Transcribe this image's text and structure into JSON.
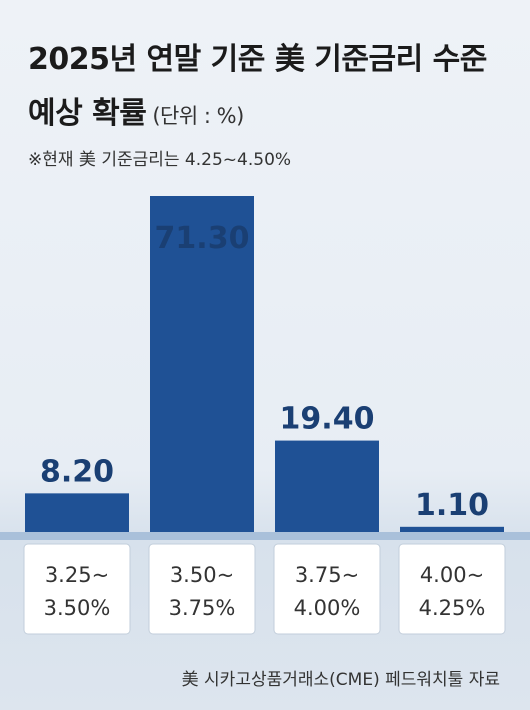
{
  "title_line1": "2025년 연말 기준 美 기준금리 수준",
  "title_line2": "예상 확률",
  "unit": "(단위 : %)",
  "note": "※현재 美 기준금리는 4.25~4.50%",
  "source": "美 시카고상품거래소(CME) 페드워치툴 자료",
  "colors": {
    "bar": "#1f5195",
    "value_text": "#1a3f73",
    "baseline": "#9bb6d3"
  },
  "chart_data": {
    "type": "bar",
    "title": "2025년 연말 기준 美 기준금리 수준 예상 확률",
    "categories": [
      "3.25~3.50%",
      "3.50~3.75%",
      "3.75~4.00%",
      "4.00~4.25%"
    ],
    "category_lines": [
      [
        "3.25~",
        "3.50%"
      ],
      [
        "3.50~",
        "3.75%"
      ],
      [
        "3.75~",
        "4.00%"
      ],
      [
        "4.00~",
        "4.25%"
      ]
    ],
    "values": [
      8.2,
      71.3,
      19.4,
      1.1
    ],
    "value_labels": [
      "8.20",
      "71.30",
      "19.40",
      "1.10"
    ],
    "ylim": [
      0,
      71.3
    ],
    "grid": false,
    "legend": "none"
  }
}
